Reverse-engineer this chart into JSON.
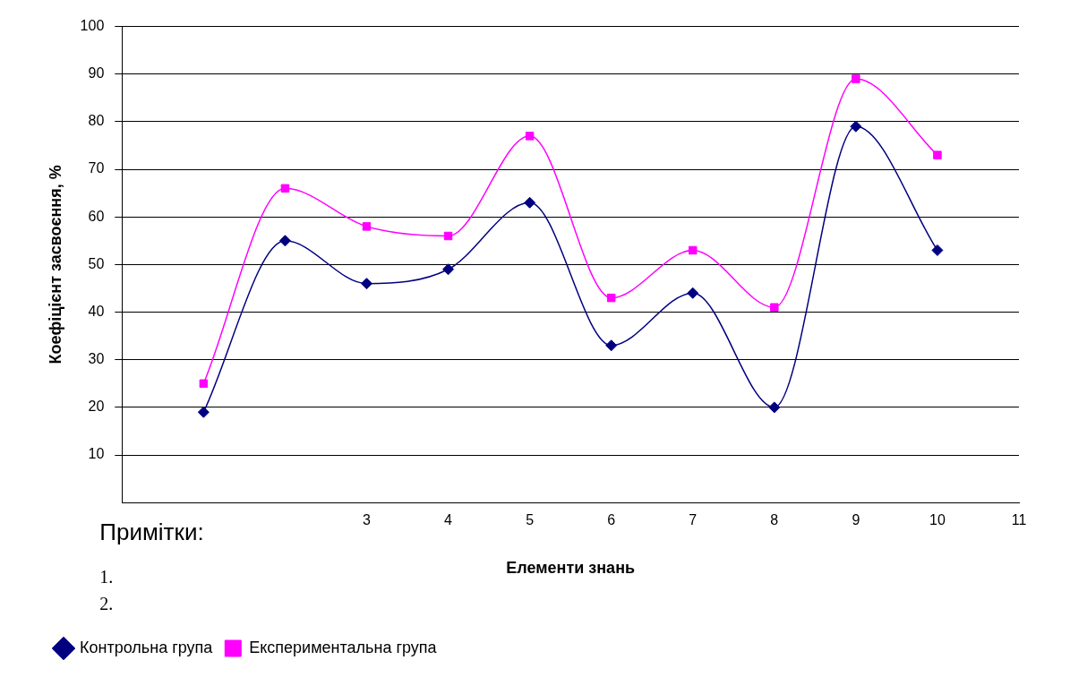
{
  "chart_data": {
    "type": "line",
    "xlabel": "Елементи знань",
    "ylabel": "Коефіцієнт засвоєння, %",
    "x": [
      1,
      2,
      3,
      4,
      5,
      6,
      7,
      8,
      9,
      10
    ],
    "series": [
      {
        "name": "Контрольна група",
        "color": "#000080",
        "marker": "diamond",
        "values": [
          19,
          55,
          46,
          49,
          63,
          33,
          44,
          20,
          79,
          53
        ]
      },
      {
        "name": "Експериментальна група",
        "color": "#ff00ff",
        "marker": "square",
        "values": [
          25,
          66,
          58,
          56,
          77,
          43,
          53,
          41,
          89,
          73
        ]
      }
    ],
    "xlim": [
      0,
      11
    ],
    "xticks": [
      3,
      4,
      5,
      6,
      7,
      8,
      9,
      10,
      11
    ],
    "ylim": [
      0,
      100
    ],
    "yticks": [
      10,
      20,
      30,
      40,
      50,
      60,
      70,
      80,
      90,
      100
    ],
    "grid": "y",
    "legend": "bottom left",
    "annotations": [
      "Примітки:",
      "1.",
      "2."
    ]
  }
}
